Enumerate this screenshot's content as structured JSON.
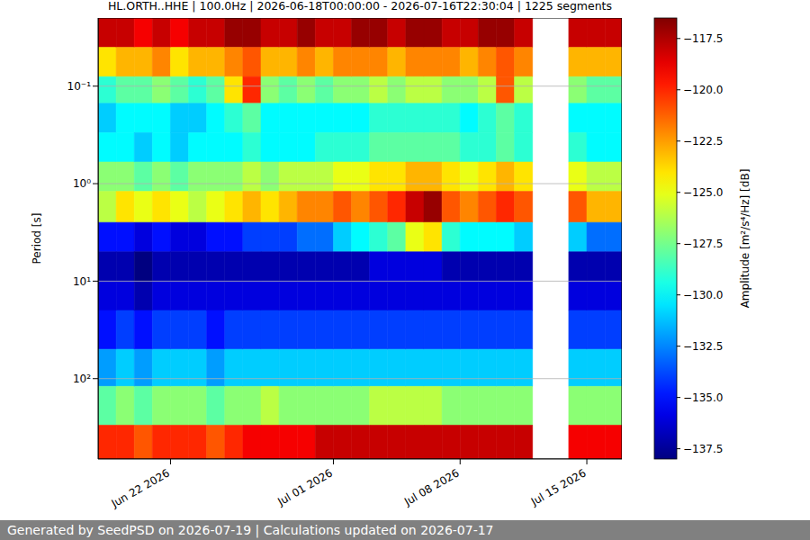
{
  "chart_data": {
    "type": "heatmap",
    "title": "HL.ORTH..HHE | 100.0Hz | 2026-06-18T00:00:00 - 2026-07-16T22:30:04 | 1225 segments",
    "footer": "Generated by SeedPSD on 2026-07-19 | Calculations updated on 2026-07-17",
    "y_label": "Period [s]",
    "log": "y",
    "grid": true,
    "color": "jet",
    "xlim": [
      "2026-06-18T00:00:00",
      "2026-07-16T22:30:04"
    ],
    "xticks": [
      {
        "value": "2026-06-22",
        "label": "Jun 22 2026"
      },
      {
        "value": "2026-07-01",
        "label": "Jul 01 2026"
      },
      {
        "value": "2026-07-08",
        "label": "Jul 08 2026"
      },
      {
        "value": "2026-07-15",
        "label": "Jul 15 2026"
      }
    ],
    "ylim": [
      0.02,
      667
    ],
    "yticks": [
      {
        "value": 0.1,
        "label": "10⁻¹"
      },
      {
        "value": 1,
        "label": "10⁰"
      },
      {
        "value": 10,
        "label": "10¹"
      },
      {
        "value": 100,
        "label": "10²"
      }
    ],
    "x": [
      "2026-06-18",
      "2026-06-19",
      "2026-06-20",
      "2026-06-21",
      "2026-06-22",
      "2026-06-23",
      "2026-06-24",
      "2026-06-25",
      "2026-06-26",
      "2026-06-27",
      "2026-06-28",
      "2026-06-29",
      "2026-06-30",
      "2026-07-01",
      "2026-07-02",
      "2026-07-03",
      "2026-07-04",
      "2026-07-05",
      "2026-07-06",
      "2026-07-07",
      "2026-07-08",
      "2026-07-09",
      "2026-07-10",
      "2026-07-11",
      "2026-07-12",
      "2026-07-13",
      "2026-07-14",
      "2026-07-15",
      "2026-07-16"
    ],
    "period_bins": [
      0.02,
      0.04,
      0.08,
      0.15,
      0.3,
      0.6,
      1.2,
      2.5,
      5,
      10,
      20,
      50,
      120,
      300,
      667
    ],
    "cells": [
      [
        -118,
        -124,
        -129,
        -131,
        -130,
        -127,
        -126,
        -135,
        -137,
        -136,
        -135,
        -132,
        -128,
        -120
      ],
      [
        -118,
        -123,
        -128,
        -130,
        -130,
        -127,
        -124,
        -135,
        -137,
        -136,
        -134,
        -131,
        -127,
        -120
      ],
      [
        -119,
        -123,
        -128,
        -130,
        -131,
        -128,
        -125,
        -136,
        -138,
        -137,
        -135,
        -132,
        -128,
        -121
      ],
      [
        -118,
        -122,
        -127,
        -130,
        -130,
        -127,
        -124,
        -135,
        -137,
        -136,
        -134,
        -131,
        -127,
        -120
      ],
      [
        -119,
        -124,
        -128,
        -131,
        -131,
        -128,
        -125,
        -136,
        -137,
        -136,
        -134,
        -131,
        -127,
        -120
      ],
      [
        -118,
        -123,
        -129,
        -131,
        -130,
        -127,
        -126,
        -136,
        -137,
        -136,
        -134,
        -131,
        -127,
        -120
      ],
      [
        -118,
        -123,
        -128,
        -130,
        -130,
        -127,
        -125,
        -135,
        -137,
        -136,
        -135,
        -132,
        -128,
        -121
      ],
      [
        -117,
        -122,
        -124,
        -129,
        -130,
        -127,
        -124,
        -135,
        -137,
        -136,
        -134,
        -131,
        -127,
        -120
      ],
      [
        -117,
        -121,
        -120,
        -128,
        -129,
        -126,
        -123,
        -134,
        -137,
        -136,
        -134,
        -131,
        -127,
        -119
      ],
      [
        -118,
        -123,
        -127,
        -130,
        -130,
        -127,
        -124,
        -134,
        -137,
        -136,
        -134,
        -131,
        -126,
        -119
      ],
      [
        -118,
        -123,
        -128,
        -130,
        -130,
        -126,
        -123,
        -134,
        -137,
        -136,
        -134,
        -131,
        -127,
        -119
      ],
      [
        -117,
        -122,
        -127,
        -130,
        -130,
        -126,
        -122,
        -133,
        -137,
        -136,
        -134,
        -131,
        -127,
        -119
      ],
      [
        -118,
        -123,
        -128,
        -130,
        -129,
        -126,
        -122,
        -133,
        -137,
        -136,
        -134,
        -131,
        -127,
        -118
      ],
      [
        -118,
        -122,
        -127,
        -130,
        -129,
        -125,
        -121,
        -131,
        -137,
        -136,
        -134,
        -131,
        -127,
        -118
      ],
      [
        -117,
        -122,
        -127,
        -130,
        -129,
        -125,
        -122,
        -130,
        -137,
        -136,
        -134,
        -131,
        -127,
        -118
      ],
      [
        -117,
        -122,
        -126,
        -129,
        -128,
        -124,
        -121,
        -129,
        -136,
        -136,
        -134,
        -131,
        -126,
        -118
      ],
      [
        -118,
        -123,
        -127,
        -129,
        -128,
        -124,
        -120,
        -128,
        -136,
        -136,
        -134,
        -131,
        -126,
        -118
      ],
      [
        -117,
        -122,
        -126,
        -129,
        -128,
        -123,
        -118,
        -125,
        -136,
        -136,
        -134,
        -131,
        -126,
        -118
      ],
      [
        -117,
        -122,
        -126,
        -129,
        -128,
        -123,
        -117,
        -124,
        -136,
        -136,
        -134,
        -131,
        -126,
        -118
      ],
      [
        -118,
        -122,
        -127,
        -129,
        -128,
        -124,
        -121,
        -129,
        -137,
        -136,
        -134,
        -131,
        -127,
        -118
      ],
      [
        -118,
        -123,
        -127,
        -130,
        -129,
        -125,
        -122,
        -130,
        -137,
        -136,
        -134,
        -131,
        -127,
        -118
      ],
      [
        -117,
        -122,
        -126,
        -129,
        -129,
        -124,
        -121,
        -130,
        -137,
        -136,
        -134,
        -131,
        -127,
        -118
      ],
      [
        -117,
        -121,
        -121,
        -128,
        -128,
        -123,
        -120,
        -130,
        -137,
        -136,
        -134,
        -131,
        -127,
        -118
      ],
      [
        -118,
        -122,
        -126,
        -129,
        -129,
        -124,
        -121,
        -131,
        -137,
        -136,
        -134,
        -131,
        -127,
        -118
      ],
      [
        null,
        null,
        null,
        null,
        null,
        null,
        null,
        null,
        null,
        null,
        null,
        null,
        null,
        null
      ],
      [
        null,
        null,
        null,
        null,
        null,
        null,
        null,
        null,
        null,
        null,
        null,
        null,
        null,
        null
      ],
      [
        -118,
        -123,
        -127,
        -130,
        -129,
        -125,
        -121,
        -131,
        -137,
        -136,
        -134,
        -131,
        -127,
        -119
      ],
      [
        -118,
        -123,
        -128,
        -130,
        -130,
        -126,
        -123,
        -133,
        -137,
        -136,
        -134,
        -131,
        -127,
        -119
      ],
      [
        -118,
        -123,
        -128,
        -130,
        -130,
        -126,
        -123,
        -133,
        -137,
        -136,
        -134,
        -131,
        -127,
        -119
      ]
    ],
    "colorbar": {
      "label": "Amplitude [m²/s⁴/Hz] [dB]",
      "range": [
        -138,
        -116.5
      ],
      "ticks": [
        {
          "value": -117.5,
          "label": "−117.5"
        },
        {
          "value": -120,
          "label": "−120.0"
        },
        {
          "value": -122.5,
          "label": "−122.5"
        },
        {
          "value": -125,
          "label": "−125.0"
        },
        {
          "value": -127.5,
          "label": "−127.5"
        },
        {
          "value": -130,
          "label": "−130.0"
        },
        {
          "value": -132.5,
          "label": "−132.5"
        },
        {
          "value": -135,
          "label": "−135.0"
        },
        {
          "value": -137.5,
          "label": "−137.5"
        }
      ]
    }
  }
}
